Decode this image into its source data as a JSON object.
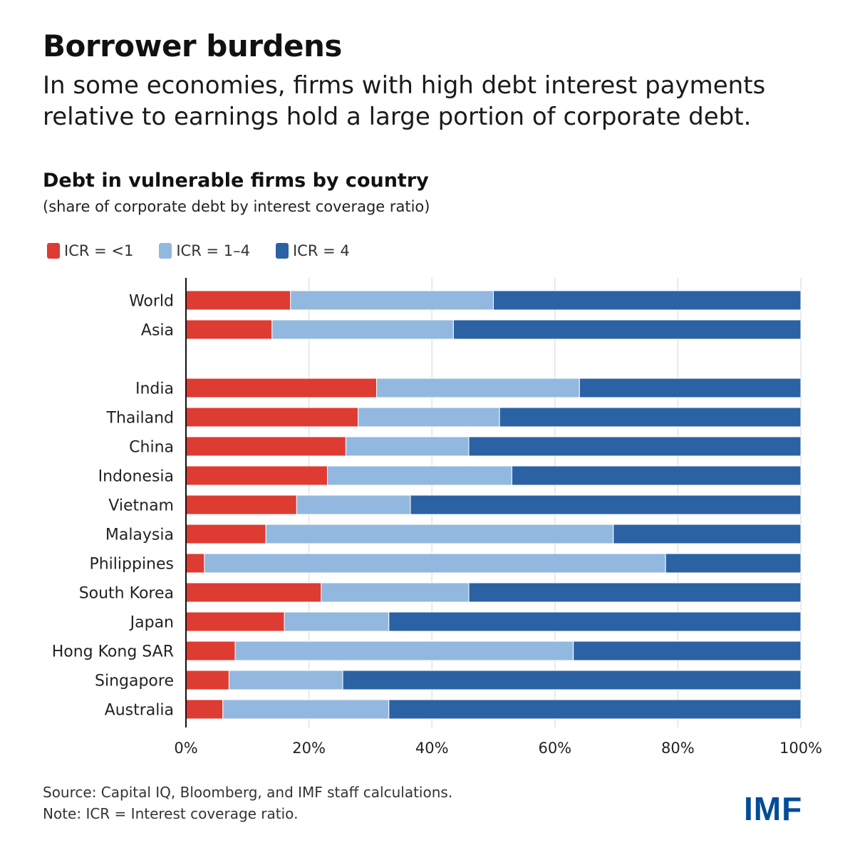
{
  "headline": "Borrower burdens",
  "dek": "In some economies, firms with high debt interest payments relative to earnings hold a large portion of corporate debt.",
  "footer": {
    "source": "Source: Capital IQ, Bloomberg, and IMF staff calculations.",
    "note": "Note: ICR = Interest coverage ratio."
  },
  "logo": "IMF",
  "colors": {
    "icr_lt1": "#de3b32",
    "icr_1_4": "#93b8df",
    "icr_4": "#2b62a4",
    "grid": "#e3e3e3",
    "axis": "#111111"
  },
  "chart_data": {
    "type": "bar",
    "orientation": "horizontal",
    "stacked": true,
    "title": "Debt in vulnerable firms by country",
    "subtitle": "(share of corporate debt by interest coverage ratio)",
    "categories": [
      "World",
      "Asia",
      "India",
      "Thailand",
      "China",
      "Indonesia",
      "Vietnam",
      "Malaysia",
      "Philippines",
      "South Korea",
      "Japan",
      "Hong Kong SAR",
      "Singapore",
      "Australia"
    ],
    "gap_after_index": 1,
    "series": [
      {
        "name": "ICR = <1",
        "values": [
          17,
          14,
          31,
          28,
          26,
          23,
          18,
          13,
          3,
          22,
          16,
          8,
          7,
          6
        ]
      },
      {
        "name": "ICR = 1–4",
        "values": [
          33,
          29.5,
          33,
          23,
          20,
          30,
          18.5,
          56.5,
          75,
          24,
          17,
          55,
          18.5,
          27
        ]
      },
      {
        "name": "ICR = 4",
        "values": [
          50,
          56.5,
          36,
          49,
          54,
          47,
          63.5,
          30.5,
          22,
          54,
          67,
          37,
          74.5,
          67
        ]
      }
    ],
    "xlim": [
      0,
      100
    ],
    "x_ticks": [
      "0%",
      "20%",
      "40%",
      "60%",
      "80%",
      "100%"
    ],
    "x_tick_values": [
      0,
      20,
      40,
      60,
      80,
      100
    ],
    "grid": true,
    "legend_position": "top-left"
  }
}
